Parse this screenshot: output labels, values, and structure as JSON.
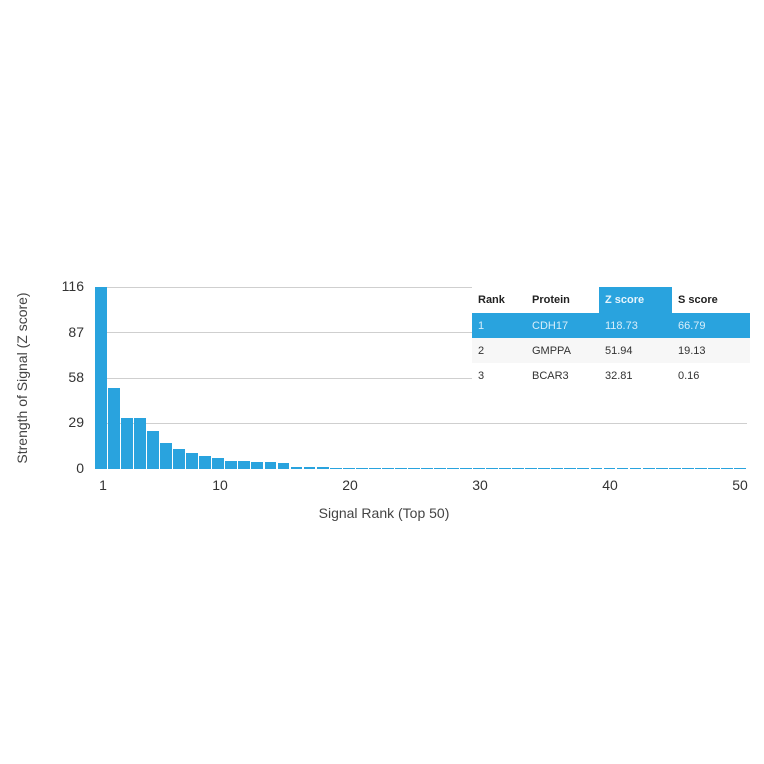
{
  "chart_data": {
    "type": "bar",
    "title": "",
    "xlabel": "Signal Rank (Top 50)",
    "ylabel": "Strength of Signal (Z score)",
    "ylim": [
      0,
      116
    ],
    "xlim": [
      1,
      50
    ],
    "yticks": [
      0,
      29,
      58,
      87,
      116
    ],
    "xticks": [
      1,
      10,
      20,
      30,
      40,
      50
    ],
    "grid": true,
    "bar_color": "#29a3de",
    "categories": [
      1,
      2,
      3,
      4,
      5,
      6,
      7,
      8,
      9,
      10,
      11,
      12,
      13,
      14,
      15,
      16,
      17,
      18,
      19,
      20,
      21,
      22,
      23,
      24,
      25,
      26,
      27,
      28,
      29,
      30,
      31,
      32,
      33,
      34,
      35,
      36,
      37,
      38,
      39,
      40,
      41,
      42,
      43,
      44,
      45,
      46,
      47,
      48,
      49,
      50
    ],
    "values": [
      118.73,
      51.94,
      32.81,
      32.5,
      24,
      16.5,
      12.5,
      10,
      8,
      7,
      5,
      5,
      4.5,
      4.2,
      3.8,
      1.6,
      1.3,
      1.0,
      0.7,
      0.6,
      0.5,
      0.5,
      0.5,
      0.5,
      0.5,
      0.5,
      0.5,
      0.5,
      0.5,
      0.5,
      0.5,
      0.5,
      0.5,
      0.5,
      0.5,
      0.5,
      0.5,
      0.5,
      0.5,
      0.5,
      0.5,
      0.5,
      0.5,
      0.5,
      0.5,
      0.5,
      0.5,
      0.5,
      0.5,
      0.5
    ],
    "legend_table": {
      "columns": [
        "Rank",
        "Protein",
        "Z score",
        "S score"
      ],
      "highlighted_column": "Z score",
      "rows": [
        {
          "rank": "1",
          "protein": "CDH17",
          "z": "118.73",
          "s": "66.79",
          "highlight": true
        },
        {
          "rank": "2",
          "protein": "GMPPA",
          "z": "51.94",
          "s": "19.13"
        },
        {
          "rank": "3",
          "protein": "BCAR3",
          "z": "32.81",
          "s": "0.16"
        }
      ]
    }
  },
  "axis": {
    "ylabel": "Strength of Signal (Z score)",
    "xlabel": "Signal Rank (Top 50)",
    "yticks": [
      "116",
      "87",
      "58",
      "29",
      "0"
    ],
    "xticks": [
      "1",
      "10",
      "20",
      "30",
      "40",
      "50"
    ]
  },
  "table": {
    "headers": {
      "rank": "Rank",
      "protein": "Protein",
      "z": "Z score",
      "s": "S score"
    },
    "rows": [
      {
        "rank": "1",
        "protein": "CDH17",
        "z": "118.73",
        "s": "66.79"
      },
      {
        "rank": "2",
        "protein": "GMPPA",
        "z": "51.94",
        "s": "19.13"
      },
      {
        "rank": "3",
        "protein": "BCAR3",
        "z": "32.81",
        "s": "0.16"
      }
    ]
  }
}
